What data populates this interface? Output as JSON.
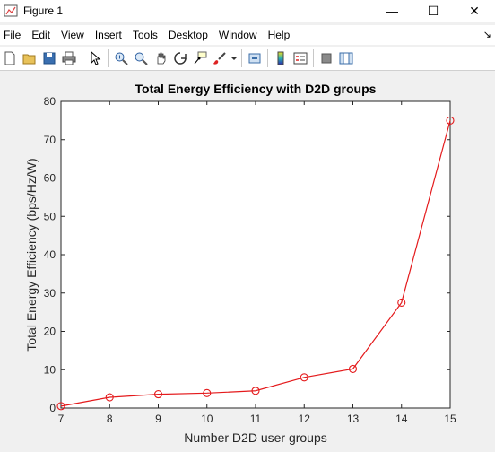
{
  "window": {
    "title": "Figure 1",
    "minimize_glyph": "—",
    "maximize_glyph": "☐",
    "close_glyph": "✕"
  },
  "menu": {
    "items": [
      "File",
      "Edit",
      "View",
      "Insert",
      "Tools",
      "Desktop",
      "Window",
      "Help"
    ],
    "dock_glyph": "↘"
  },
  "toolbar": {
    "icons": [
      "new-figure-icon",
      "open-file-icon",
      "save-icon",
      "print-icon",
      "pointer-icon",
      "zoom-in-icon",
      "zoom-out-icon",
      "pan-icon",
      "rotate-3d-icon",
      "data-cursor-icon",
      "brush-icon",
      "link-plot-icon",
      "colorbar-icon",
      "legend-icon",
      "hide-plot-tools-icon",
      "show-plot-tools-icon"
    ]
  },
  "chart_data": {
    "type": "line",
    "title": "Total Energy Efficiency with D2D groups",
    "xlabel": "Number D2D user groups",
    "ylabel": "Total Energy Efficiency (bps/Hz/W)",
    "x": [
      7,
      8,
      9,
      10,
      11,
      12,
      13,
      14,
      15
    ],
    "series": [
      {
        "values": [
          0.5,
          2.8,
          3.6,
          3.9,
          4.5,
          8.0,
          10.2,
          27.5,
          75.0
        ],
        "color": "#e41a1c",
        "marker": "circle"
      }
    ],
    "xlim": [
      7,
      15
    ],
    "ylim": [
      0,
      80
    ],
    "xticks": [
      7,
      8,
      9,
      10,
      11,
      12,
      13,
      14,
      15
    ],
    "yticks": [
      0,
      10,
      20,
      30,
      40,
      50,
      60,
      70,
      80
    ],
    "grid": false
  }
}
